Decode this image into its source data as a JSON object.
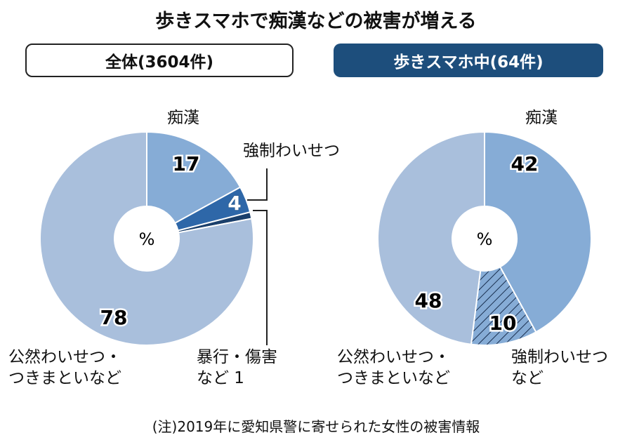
{
  "title": "歩きスマホで痴漢などの被害が増える",
  "note": "(注)2019年に愛知県警に寄せられた女性の被害情報",
  "colors": {
    "chikan": "#86acd6",
    "kyosei": "#2e67a8",
    "boko": "#1a3f6b",
    "kozen": "#a9bfdc",
    "header_dark": "#1d4e7c"
  },
  "chart_data": [
    {
      "type": "pie",
      "title": "全体(3604件)",
      "unit": "%",
      "center_label": "%",
      "categories": [
        "痴漢",
        "強制わいせつ",
        "暴行・傷害など",
        "公然わいせつ・つきまといなど"
      ],
      "values": [
        17,
        4,
        1,
        78
      ],
      "labels": {
        "chikan": "痴漢",
        "kyosei": "強制わいせつ",
        "boko_line1": "暴行・傷害",
        "boko_line2": "など 1",
        "kozen_line1": "公然わいせつ・",
        "kozen_line2": "つきまといなど"
      }
    },
    {
      "type": "pie",
      "title": "歩きスマホ中(64件)",
      "unit": "%",
      "center_label": "%",
      "categories": [
        "痴漢",
        "強制わいせつなど",
        "公然わいせつ・つきまといなど"
      ],
      "values": [
        42,
        10,
        48
      ],
      "labels": {
        "chikan": "痴漢",
        "kyosei_line1": "強制わいせつ",
        "kyosei_line2": "など",
        "kozen_line1": "公然わいせつ・",
        "kozen_line2": "つきまといなど"
      }
    }
  ]
}
